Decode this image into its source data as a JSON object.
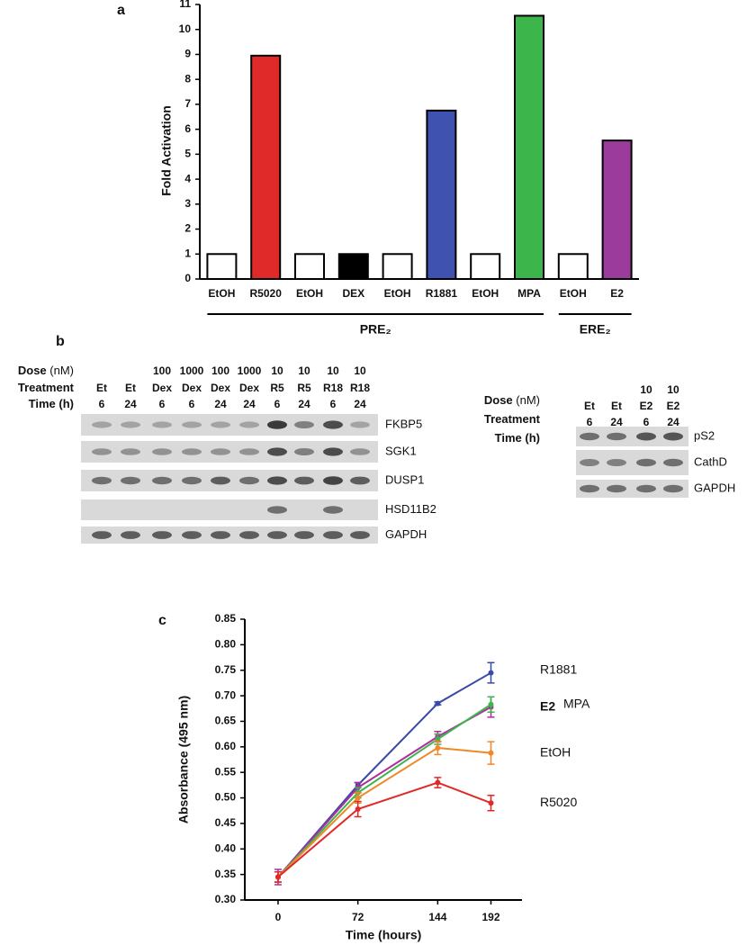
{
  "panels": [
    "a",
    "b",
    "c"
  ],
  "chart_data": [
    {
      "type": "bar",
      "y_label": "Fold Activation",
      "categories": [
        "EtOH",
        "R5020",
        "EtOH",
        "DEX",
        "EtOH",
        "R1881",
        "EtOH",
        "MPA",
        "EtOH",
        "E2"
      ],
      "values": [
        1,
        8.95,
        1,
        1,
        1,
        6.75,
        1,
        10.55,
        1,
        5.55
      ],
      "colors": [
        "#ffffff",
        "#e02a2a",
        "#ffffff",
        "#000000",
        "#ffffff",
        "#3f52b0",
        "#ffffff",
        "#3cb54a",
        "#ffffff",
        "#9b3b9b"
      ],
      "edge_color": "#000000",
      "ylim": [
        0,
        11
      ],
      "yticks": [
        0,
        1,
        2,
        3,
        4,
        5,
        6,
        7,
        8,
        9,
        10,
        11
      ],
      "groups": [
        "PRE₂",
        "ERE₂"
      ]
    },
    {
      "type": "line",
      "x_label": "Time (hours)",
      "y_label": "Absorbance (495 nm)",
      "x": [
        0,
        72,
        144,
        192
      ],
      "xlim": [
        -30,
        220
      ],
      "xticks": [
        0,
        72,
        144,
        192
      ],
      "ylim": [
        0.3,
        0.85
      ],
      "yticks": [
        {
          "value": 0.3,
          "label": "0.30"
        },
        0.35,
        {
          "value": 0.4,
          "label": "0.40"
        },
        0.45,
        {
          "value": 0.5,
          "label": "0.50"
        },
        0.55,
        {
          "value": 0.6,
          "label": "0.60"
        },
        0.65,
        {
          "value": 0.7,
          "label": "0.70"
        },
        0.75,
        {
          "value": 0.8,
          "label": "0.80"
        },
        0.85
      ],
      "series": [
        {
          "name": "R1881",
          "color": "#3a4aa8",
          "values": [
            0.345,
            0.525,
            0.685,
            0.745
          ],
          "errors": [
            0.01,
            0.005,
            0.003,
            0.02
          ]
        },
        {
          "name": "E2",
          "color": "#b02ca0",
          "values": [
            0.345,
            0.52,
            0.62,
            0.678
          ],
          "errors": [
            0.015,
            0.01,
            0.01,
            0.02
          ]
        },
        {
          "name": "MPA",
          "color": "#3cb54a",
          "values": [
            0.345,
            0.51,
            0.615,
            0.683
          ],
          "errors": [
            0.01,
            0.01,
            0.01,
            0.015
          ]
        },
        {
          "name": "EtOH",
          "color": "#f0882a",
          "values": [
            0.345,
            0.5,
            0.598,
            0.588
          ],
          "errors": [
            0.01,
            0.01,
            0.013,
            0.022
          ]
        },
        {
          "name": "R5020",
          "color": "#e02a2a",
          "values": [
            0.345,
            0.478,
            0.53,
            0.49
          ],
          "errors": [
            0.01,
            0.015,
            0.01,
            0.015
          ]
        }
      ]
    }
  ],
  "gels": [
    {
      "row_labels": [
        {
          "label": "Dose",
          "unit": "(nM)"
        },
        {
          "label": "Treatment"
        },
        {
          "label": "Time",
          "unit": "(h)"
        }
      ],
      "lanes": [
        {
          "dose": null,
          "treatment": "Et",
          "time": "6"
        },
        {
          "dose": null,
          "treatment": "Et",
          "time": "24"
        },
        {
          "dose": "100",
          "treatment": "Dex",
          "time": "6"
        },
        {
          "dose": "1000",
          "treatment": "Dex",
          "time": "6"
        },
        {
          "dose": "100",
          "treatment": "Dex",
          "time": "24"
        },
        {
          "dose": "1000",
          "treatment": "Dex",
          "time": "24"
        },
        {
          "dose": "10",
          "treatment": "R5",
          "time": "6"
        },
        {
          "dose": "10",
          "treatment": "R5",
          "time": "24"
        },
        {
          "dose": "10",
          "treatment": "R18",
          "time": "6"
        },
        {
          "dose": "10",
          "treatment": "R18",
          "time": "24"
        }
      ],
      "genes": [
        "FKBP5",
        "SGK1",
        "DUSP1",
        "HSD11B2",
        "GAPDH"
      ]
    },
    {
      "row_labels": [
        {
          "label": "Dose",
          "unit": "(nM)"
        },
        {
          "label": "Treatment"
        },
        {
          "label": "Time",
          "unit": "(h)"
        }
      ],
      "lanes": [
        {
          "dose": null,
          "treatment": "Et",
          "time": "6"
        },
        {
          "dose": null,
          "treatment": "Et",
          "time": "24"
        },
        {
          "dose": "10",
          "treatment": "E2",
          "time": "6"
        },
        {
          "dose": "10",
          "treatment": "E2",
          "time": "24"
        }
      ],
      "genes": [
        "pS2",
        "CathD",
        "GAPDH"
      ]
    }
  ]
}
